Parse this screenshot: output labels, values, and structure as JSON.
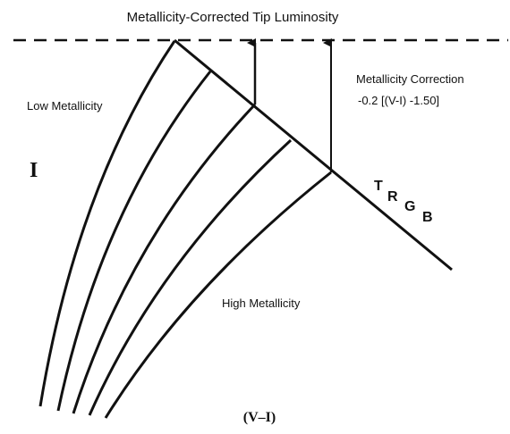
{
  "title": "Metallicity-Corrected Tip Luminosity",
  "low_label": "Low Metallicity",
  "high_label": "High Metallicity",
  "correction": {
    "title": "Metallicity Correction",
    "formula": "-0.2 [(V-I) -1.50]"
  },
  "y_axis_label": "I",
  "x_axis_label": "(V–I)",
  "trgb_letters": [
    "T",
    "R",
    "G",
    "B"
  ]
}
